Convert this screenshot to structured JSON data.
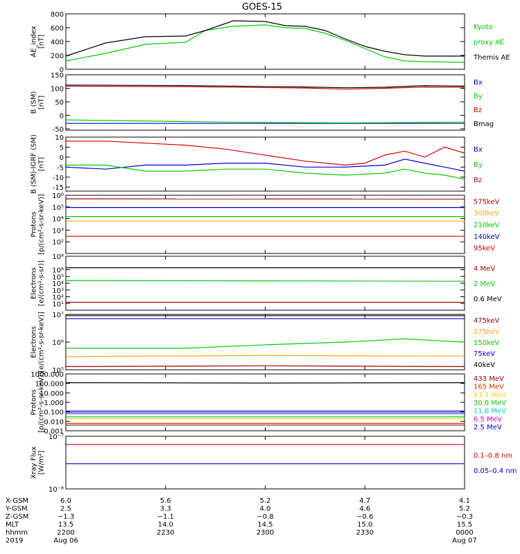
{
  "title": "GOES-15",
  "chart_data": {
    "type": "line",
    "title": "GOES-15",
    "x": [
      "2200",
      "2230",
      "2300",
      "2330",
      "0000"
    ],
    "panels": [
      {
        "id": "ae",
        "ylabel_lines": [
          "AE_index",
          "[nT]"
        ],
        "scale": "linear",
        "ylim": [
          0,
          800
        ],
        "ticks": [
          "0",
          "200",
          "400",
          "600",
          "800"
        ],
        "tick_values": [
          0,
          200,
          400,
          600,
          800
        ],
        "series": [
          {
            "name": "Kyoto proxy AE",
            "label_lines": [
              "Kyoto",
              "proxy AE"
            ],
            "color": "#00cc00",
            "x": [
              0,
              0.1,
              0.2,
              0.3,
              0.35,
              0.42,
              0.5,
              0.55,
              0.6,
              0.65,
              0.7,
              0.75,
              0.8,
              0.85,
              0.9,
              1.0
            ],
            "y": [
              120,
              230,
              360,
              390,
              560,
              620,
              640,
              600,
              590,
              520,
              420,
              300,
              180,
              120,
              110,
              100
            ]
          },
          {
            "name": "Themis AE",
            "label_lines": [
              "Themis AE"
            ],
            "color": "#000000",
            "x": [
              0,
              0.1,
              0.2,
              0.3,
              0.35,
              0.42,
              0.5,
              0.55,
              0.6,
              0.65,
              0.7,
              0.75,
              0.8,
              0.85,
              0.9,
              1.0
            ],
            "y": [
              190,
              380,
              470,
              480,
              560,
              700,
              690,
              630,
              620,
              560,
              440,
              330,
              260,
              210,
              190,
              190
            ]
          }
        ]
      },
      {
        "id": "bsm",
        "ylabel_lines": [
          "B (SM)",
          "[nT]"
        ],
        "scale": "linear",
        "ylim": [
          -55,
          150
        ],
        "ticks": [
          "-50",
          "0",
          "50",
          "100",
          "150"
        ],
        "tick_values": [
          -50,
          0,
          50,
          100,
          150
        ],
        "series": [
          {
            "name": "Bx",
            "label_lines": [
              "Bx"
            ],
            "color": "#0000cc",
            "x": [
              0,
              0.5,
              1.0
            ],
            "y": [
              -30,
              -30,
              -30
            ]
          },
          {
            "name": "By",
            "label_lines": [
              "By"
            ],
            "color": "#00cc00",
            "x": [
              0,
              0.4,
              0.7,
              1.0
            ],
            "y": [
              -17,
              -25,
              -28,
              -25
            ]
          },
          {
            "name": "Bz",
            "label_lines": [
              "Bz"
            ],
            "color": "#cc0000",
            "x": [
              0,
              0.3,
              0.6,
              0.7,
              0.8,
              0.9,
              1.0
            ],
            "y": [
              108,
              106,
              101,
              97,
              100,
              105,
              104
            ]
          },
          {
            "name": "Bmag",
            "label_lines": [
              "Bmag"
            ],
            "color": "#000000",
            "x": [
              0,
              0.3,
              0.6,
              0.7,
              0.8,
              0.9,
              1.0
            ],
            "y": [
              112,
              110,
              105,
              102,
              104,
              110,
              108
            ]
          }
        ]
      },
      {
        "id": "bigrf",
        "ylabel_lines": [
          "B (SM)-IGRF (SM)",
          "[nT]"
        ],
        "scale": "linear",
        "ylim": [
          -17,
          10
        ],
        "ticks": [
          "-15",
          "-10",
          "-5",
          "0",
          "5",
          "10"
        ],
        "tick_values": [
          -15,
          -10,
          -5,
          0,
          5,
          10
        ],
        "series": [
          {
            "name": "Bx",
            "label_lines": [
              "Bx"
            ],
            "color": "#0000cc",
            "x": [
              0,
              0.1,
              0.2,
              0.3,
              0.4,
              0.5,
              0.6,
              0.7,
              0.8,
              0.85,
              0.9,
              0.95,
              1.0
            ],
            "y": [
              -5,
              -6,
              -4,
              -4,
              -3,
              -3,
              -5,
              -5,
              -4,
              -1,
              -3,
              -5,
              -7
            ]
          },
          {
            "name": "By",
            "label_lines": [
              "By"
            ],
            "color": "#00cc00",
            "x": [
              0,
              0.1,
              0.2,
              0.3,
              0.4,
              0.5,
              0.6,
              0.7,
              0.8,
              0.85,
              0.9,
              0.95,
              1.0
            ],
            "y": [
              -4,
              -4,
              -7,
              -7,
              -6,
              -6,
              -8,
              -9,
              -8,
              -6,
              -8,
              -9,
              -11
            ]
          },
          {
            "name": "Bz",
            "label_lines": [
              "Bz"
            ],
            "color": "#cc0000",
            "x": [
              0,
              0.1,
              0.2,
              0.3,
              0.4,
              0.5,
              0.6,
              0.7,
              0.75,
              0.8,
              0.85,
              0.9,
              0.95,
              1.0
            ],
            "y": [
              8,
              8,
              7,
              6,
              4,
              1,
              -2,
              -4,
              -3,
              1,
              3,
              0,
              5,
              2
            ]
          }
        ]
      },
      {
        "id": "protons",
        "ylabel_lines": [
          "Protons",
          "[p/(cm²-s-sr-keV)]"
        ],
        "scale": "log",
        "ylim": [
          10.0,
          1000000.0
        ],
        "ticks": [
          "10²",
          "10³",
          "10⁴",
          "10⁵",
          "10⁶"
        ],
        "tick_values": [
          100.0,
          1000.0,
          10000.0,
          100000.0,
          1000000.0
        ],
        "series": [
          {
            "name": "575keV",
            "label_lines": [
              "575keV"
            ],
            "color": "#990000",
            "x": [
              0,
              1
            ],
            "y": [
              500000,
              480000
            ]
          },
          {
            "name": "300keV",
            "label_lines": [
              "300keV"
            ],
            "color": "#ffaa00",
            "x": [
              0,
              1
            ],
            "y": [
              6000,
              6000
            ]
          },
          {
            "name": "210keV",
            "label_lines": [
              "210keV"
            ],
            "color": "#00cc00",
            "x": [
              0,
              1
            ],
            "y": [
              15000,
              15000
            ]
          },
          {
            "name": "140keV",
            "label_lines": [
              "140keV"
            ],
            "color": "#0000cc",
            "x": [
              0,
              1
            ],
            "y": [
              90000,
              90000
            ]
          },
          {
            "name": "95keV",
            "label_lines": [
              "95keV"
            ],
            "color": "#cc0000",
            "x": [
              0,
              1
            ],
            "y": [
              300,
              300
            ]
          }
        ]
      },
      {
        "id": "electrons1",
        "ylabel_lines": [
          "Electrons",
          "[e/(cm²-s-sr)]"
        ],
        "scale": "log",
        "ylim": [
          1.0,
          100000000.0
        ],
        "ticks": [
          "10¹",
          "10²",
          "10³",
          "10⁴",
          "10⁵",
          "10⁶",
          "10⁸"
        ],
        "tick_values": [
          10.0,
          100.0,
          1000.0,
          10000.0,
          100000.0,
          1000000.0,
          100000000.0
        ],
        "series": [
          {
            "name": "4 MeV",
            "label_lines": [
              "4 MeV"
            ],
            "color": "#990000",
            "x": [
              0,
              1
            ],
            "y": [
              15,
              15
            ]
          },
          {
            "name": "2 MeV",
            "label_lines": [
              "2 MeV"
            ],
            "color": "#00cc00",
            "x": [
              0,
              1
            ],
            "y": [
              25000,
              20000
            ]
          },
          {
            "name": "0.6 MeV",
            "label_lines": [
              "0.6 MeV"
            ],
            "color": "#000000",
            "x": [
              0,
              1
            ],
            "y": [
              2000000,
              2000000
            ]
          }
        ]
      },
      {
        "id": "electrons2",
        "ylabel_lines": [
          "Electrons",
          "[e/(cm²-s-sr-keV)]"
        ],
        "scale": "log",
        "ylim": [
          100000.0,
          10000000.0
        ],
        "ticks": [
          "10⁵",
          "10⁶",
          "10⁷"
        ],
        "tick_values": [
          100000.0,
          1000000.0,
          10000000.0
        ],
        "series": [
          {
            "name": "475keV",
            "label_lines": [
              "475keV"
            ],
            "color": "#990000",
            "x": [
              0,
              0.5,
              1
            ],
            "y": [
              130000,
              140000,
              130000
            ]
          },
          {
            "name": "275keV",
            "label_lines": [
              "275keV"
            ],
            "color": "#ffaa00",
            "x": [
              0,
              0.5,
              1
            ],
            "y": [
              300000,
              330000,
              310000
            ]
          },
          {
            "name": "150keV",
            "label_lines": [
              "150keV"
            ],
            "color": "#00cc00",
            "x": [
              0,
              0.3,
              0.5,
              0.7,
              0.85,
              1
            ],
            "y": [
              600000,
              600000,
              800000,
              1000000,
              1300000,
              1000000
            ]
          },
          {
            "name": "75keV",
            "label_lines": [
              "75keV"
            ],
            "color": "#0000cc",
            "x": [
              0,
              1
            ],
            "y": [
              7000000,
              7000000
            ]
          },
          {
            "name": "40keV",
            "label_lines": [
              "40keV"
            ],
            "color": "#000000",
            "x": [
              0,
              1
            ],
            "y": [
              9000000,
              9000000
            ]
          }
        ]
      },
      {
        "id": "protons2",
        "ylabel_lines": [
          "Protons",
          "[p/(cm²-s-sr-keV)]"
        ],
        "scale": "log",
        "ylim": [
          0.001,
          1000
        ],
        "ticks": [
          "0.001",
          "0.010",
          "0.100",
          "1.000",
          "10.000",
          "100.000",
          "1000.000"
        ],
        "tick_values": [
          0.001,
          0.01,
          0.1,
          1,
          10,
          100,
          1000
        ],
        "series": [
          {
            "name": "433 MeV",
            "label_lines": [
              "433 MeV"
            ],
            "color": "#990000",
            "x": [
              0,
              1
            ],
            "y": [
              0.004,
              0.004
            ]
          },
          {
            "name": "165 MeV",
            "label_lines": [
              "165 MeV"
            ],
            "color": "#cc3300",
            "x": [
              0,
              1
            ],
            "y": [
              0.006,
              0.006
            ]
          },
          {
            "name": "63.1 MeV",
            "label_lines": [
              "63.1 MeV"
            ],
            "color": "#ffcc00",
            "x": [
              0,
              1
            ],
            "y": [
              0.02,
              0.02
            ]
          },
          {
            "name": "30.6 MeV",
            "label_lines": [
              "30.6 MeV"
            ],
            "color": "#00cc00",
            "x": [
              0,
              1
            ],
            "y": [
              0.03,
              0.03
            ]
          },
          {
            "name": "11.6 MeV",
            "label_lines": [
              "11.6 MeV"
            ],
            "color": "#00cccc",
            "x": [
              0,
              1
            ],
            "y": [
              0.06,
              0.06
            ]
          },
          {
            "name": "6.5 MeV",
            "label_lines": [
              "6.5 MeV"
            ],
            "color": "#cc00cc",
            "x": [
              0,
              1
            ],
            "y": [
              0.08,
              0.08
            ]
          },
          {
            "name": "2.5 MeV",
            "label_lines": [
              "2.5 MeV"
            ],
            "color": "#0000cc",
            "x": [
              0,
              1
            ],
            "y": [
              0.12,
              0.12
            ]
          },
          {
            "name": "",
            "label_lines": [],
            "color": "#000000",
            "x": [
              0,
              0.5,
              1
            ],
            "y": [
              120,
              110,
              120
            ]
          }
        ]
      },
      {
        "id": "xray",
        "ylabel_lines": [
          "Xray Flux",
          "[W/m²]"
        ],
        "scale": "log",
        "ylim": [
          1e-08,
          1e-07
        ],
        "ticks": [
          "10⁻⁸",
          "10⁻⁷"
        ],
        "tick_values": [
          1e-08,
          1e-07
        ],
        "series": [
          {
            "name": "0.1-0.8 nm",
            "label_lines": [
              "0.1–0.8 nm"
            ],
            "color": "#cc0000",
            "x": [
              0,
              1
            ],
            "y": [
              7e-08,
              7e-08
            ]
          },
          {
            "name": "0.05-0.4 nm",
            "label_lines": [
              "0.05–0.4 nm"
            ],
            "color": "#0000cc",
            "x": [
              0,
              1
            ],
            "y": [
              3e-08,
              3e-08
            ]
          }
        ]
      }
    ],
    "ephemeris": {
      "row_labels": [
        "X-GSM",
        "Y-GSM",
        "Z-GSM",
        "MLT",
        "hhmm",
        "2019"
      ],
      "columns": [
        [
          "6.0",
          "2.5",
          "−1.3",
          "13.5",
          "2200",
          "Aug 06"
        ],
        [
          "5.6",
          "3.3",
          "−1.1",
          "14.0",
          "2230",
          ""
        ],
        [
          "5.2",
          "4.0",
          "−0.8",
          "14.5",
          "2300",
          ""
        ],
        [
          "4.7",
          "4.6",
          "−0.6",
          "15.0",
          "2330",
          ""
        ],
        [
          "4.1",
          "5.2",
          "−0.3",
          "15.5",
          "0000",
          "Aug 07"
        ]
      ]
    }
  }
}
